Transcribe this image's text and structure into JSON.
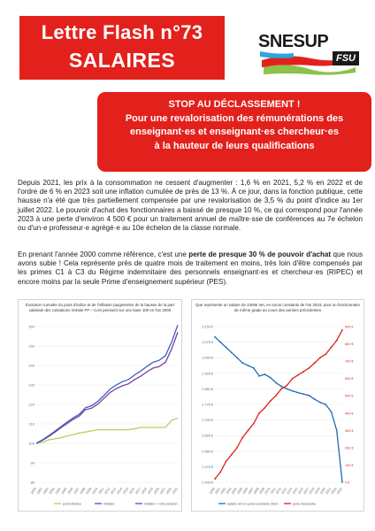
{
  "header": {
    "line1": "Lettre Flash n°73",
    "line2": "SALAIRES"
  },
  "logo": {
    "name": "SNESUP",
    "sub": "FSU"
  },
  "alert": {
    "lines": [
      "STOP AU DÉCLASSEMENT !",
      "Pour une revalorisation des rémunérations des",
      "enseignant·es et enseignant·es chercheur·es",
      "à la hauteur de leurs qualifications"
    ]
  },
  "body": {
    "p1": "Depuis 2021, les prix à la consommation ne cessent d'augmenter : 1,6 % en 2021, 5,2 % en 2022 et de l'ordre de 6 % en 2023 soit une inflation cumulée de près de 13 %. À ce jour, dans la fonction publique, cette hausse n'a été que très partiellement compensée par une revalorisation de 3,5 % du point d'indice au 1er juillet 2022. Le pouvoir d'achat des fonctionnaires a baissé de presque 10 %, ce qui correspond pour l'année 2023 à une perte d'environ 4 500 € pour un traitement annuel de maître·sse de conférences au 7e échelon ou d'un·e professeur·e agrégé·e au 10e échelon de la classe normale.",
    "p2_a": "En prenant l'année 2000 comme référence, c'est une ",
    "p2_bold": "perte de presque 30 % de pouvoir d'achat",
    "p2_b": " que nous avons subie ! Cela représente près de quatre mois de traitement en moins, très loin d'être compensés par les primes C1 à C3 du Régime indemnitaire des personnels enseignant·es et chercheur·es (RIPEC) et encore moins par la seule Prime d'enseignement supérieur (PES)."
  },
  "chart_data": [
    {
      "type": "line",
      "title": "Évolution cumulée du point d'indice et de l'inflation (augmentée de la hausse de la part salariale des cotisations retraite FP – CAS pension) sur une base 100 en l'an 2000",
      "x": [
        "2000",
        "2001",
        "2002",
        "2003",
        "2004",
        "2005",
        "2006",
        "2007",
        "2008",
        "2009",
        "2010",
        "2011",
        "2012",
        "2013",
        "2014",
        "2015",
        "2016",
        "2017",
        "2018",
        "2019",
        "2020",
        "2021",
        "2022",
        "2023"
      ],
      "ylim": [
        80,
        160
      ],
      "yticks": [
        "80",
        "90",
        "100",
        "110",
        "120",
        "130",
        "140",
        "150",
        "160"
      ],
      "series": [
        {
          "name": "point d'indice",
          "color": "#b7cf5a",
          "values": [
            100,
            100.5,
            101.8,
            102.3,
            102.8,
            103.8,
            104.5,
            105.3,
            105.8,
            106.4,
            107,
            107,
            107,
            107,
            107,
            107,
            107.6,
            108.2,
            108.2,
            108.2,
            108.2,
            108.2,
            111.9,
            112.9
          ]
        },
        {
          "name": "inflation",
          "color": "#7a3fa0",
          "values": [
            100,
            101.6,
            103.5,
            105.7,
            108,
            110.2,
            112.3,
            114.1,
            117.3,
            118.1,
            120.2,
            123.1,
            126.2,
            128.1,
            129.6,
            130.6,
            132.8,
            134.6,
            136.8,
            138.7,
            139.5,
            141.7,
            148.4,
            157.1
          ]
        },
        {
          "name": "inflation + CAS pension",
          "color": "#3b5fc0",
          "values": [
            100,
            101.8,
            103.9,
            106.2,
            108.6,
            110.9,
            113.1,
            115,
            118.3,
            119.3,
            121.6,
            124.6,
            127.9,
            130,
            131.7,
            132.8,
            135.2,
            137.2,
            139.6,
            141.7,
            142.7,
            145.1,
            151.9,
            160.8
          ]
        }
      ]
    },
    {
      "type": "line",
      "title": "Que représente un salaire de 2400€ net, en euros constants de l'an 2023, pour un fonctionnaire de même grade au cours des années précédentes",
      "x": [
        "2000",
        "2001",
        "2002",
        "2003",
        "2004",
        "2005",
        "2006",
        "2007",
        "2008",
        "2009",
        "2010",
        "2011",
        "2012",
        "2013",
        "2014",
        "2015",
        "2016",
        "2017",
        "2018",
        "2019",
        "2020",
        "2021",
        "2022",
        "2023"
      ],
      "ylim_left": [
        2400,
        3150
      ],
      "yticks_left": [
        "2 400 €",
        "2 475 €",
        "2 550 €",
        "2 625 €",
        "2 700 €",
        "2 775 €",
        "2 850 €",
        "2 925 €",
        "3 000 €",
        "3 075 €",
        "3 150 €"
      ],
      "ylim_right": [
        0,
        900
      ],
      "yticks_right": [
        "0 €",
        "100 €",
        "200 €",
        "300 €",
        "400 €",
        "500 €",
        "600 €",
        "700 €",
        "800 €",
        "900 €"
      ],
      "series": [
        {
          "name": "salaire net en euros constants 2023",
          "axis": "left",
          "color": "#1f6bb5",
          "values": [
            3100,
            3075,
            3050,
            3025,
            3000,
            2975,
            2962,
            2950,
            2912,
            2920,
            2905,
            2880,
            2862,
            2850,
            2840,
            2832,
            2825,
            2818,
            2800,
            2785,
            2775,
            2740,
            2650,
            2400
          ]
        },
        {
          "name": "perte mensuelle",
          "axis": "right",
          "color": "#d9231d",
          "values": [
            20,
            60,
            120,
            160,
            200,
            260,
            300,
            340,
            400,
            430,
            470,
            500,
            540,
            560,
            600,
            620,
            640,
            660,
            690,
            720,
            740,
            780,
            820,
            880
          ]
        }
      ]
    }
  ]
}
